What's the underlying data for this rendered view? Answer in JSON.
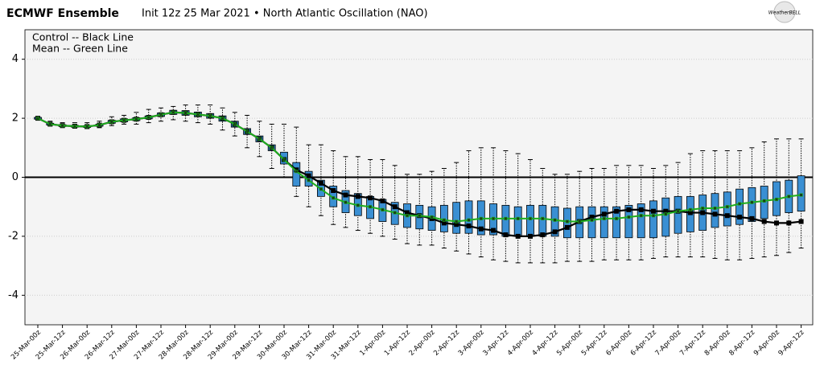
{
  "chart_data": {
    "type": "box",
    "title": "ECMWF Ensemble",
    "subtitle": "Init 12z 25 Mar 2021 • North Atlantic Oscillation (NAO)",
    "logo_text": "WeatherBELL",
    "categories": [
      "25-Mar-00z",
      null,
      "25-Mar-12z",
      null,
      "26-Mar-00z",
      null,
      "26-Mar-12z",
      null,
      "27-Mar-00z",
      null,
      "27-Mar-12z",
      null,
      "28-Mar-00z",
      null,
      "28-Mar-12z",
      null,
      "29-Mar-00z",
      null,
      "29-Mar-12z",
      null,
      "30-Mar-00z",
      null,
      "30-Mar-12z",
      null,
      "31-Mar-00z",
      null,
      "31-Mar-12z",
      null,
      "1-Apr-00z",
      null,
      "1-Apr-12z",
      null,
      "2-Apr-00z",
      null,
      "2-Apr-12z",
      null,
      "3-Apr-00z",
      null,
      "3-Apr-12z",
      null,
      "4-Apr-00z",
      null,
      "4-Apr-12z",
      null,
      "5-Apr-00z",
      null,
      "5-Apr-12z",
      null,
      "6-Apr-00z",
      null,
      "6-Apr-12z",
      null,
      "7-Apr-00z",
      null,
      "7-Apr-12z",
      null,
      "8-Apr-00z",
      null,
      "8-Apr-12z",
      null,
      "9-Apr-00z",
      null,
      "9-Apr-12z"
    ],
    "boxes": {
      "color": "#3a8fd3",
      "min": [
        1.95,
        1.75,
        1.7,
        1.68,
        1.65,
        1.68,
        1.75,
        1.8,
        1.8,
        1.85,
        1.9,
        1.95,
        1.9,
        1.85,
        1.8,
        1.6,
        1.4,
        1.0,
        0.7,
        0.3,
        0.0,
        -0.65,
        -1.0,
        -1.3,
        -1.6,
        -1.7,
        -1.8,
        -1.9,
        -2.0,
        -2.1,
        -2.25,
        -2.3,
        -2.3,
        -2.4,
        -2.5,
        -2.6,
        -2.7,
        -2.8,
        -2.85,
        -2.9,
        -2.9,
        -2.9,
        -2.9,
        -2.85,
        -2.85,
        -2.85,
        -2.8,
        -2.8,
        -2.8,
        -2.8,
        -2.75,
        -2.7,
        -2.7,
        -2.7,
        -2.7,
        -2.75,
        -2.8,
        -2.8,
        -2.75,
        -2.7,
        -2.65,
        -2.55,
        -2.4
      ],
      "q1": [
        1.97,
        1.77,
        1.72,
        1.7,
        1.69,
        1.73,
        1.83,
        1.88,
        1.92,
        1.98,
        2.06,
        2.13,
        2.1,
        2.05,
        2.0,
        1.9,
        1.7,
        1.45,
        1.2,
        0.9,
        0.45,
        -0.3,
        -0.3,
        -0.65,
        -1.0,
        -1.2,
        -1.3,
        -1.4,
        -1.5,
        -1.6,
        -1.7,
        -1.75,
        -1.8,
        -1.85,
        -1.9,
        -1.9,
        -1.95,
        -1.95,
        -2.0,
        -2.0,
        -2.0,
        -2.0,
        -2.0,
        -2.05,
        -2.05,
        -2.05,
        -2.05,
        -2.05,
        -2.05,
        -2.05,
        -2.05,
        -2.0,
        -1.9,
        -1.85,
        -1.8,
        -1.7,
        -1.65,
        -1.6,
        -1.5,
        -1.4,
        -1.3,
        -1.2,
        -1.15
      ],
      "q3": [
        2.03,
        1.83,
        1.78,
        1.76,
        1.75,
        1.8,
        1.93,
        1.98,
        2.02,
        2.08,
        2.18,
        2.27,
        2.26,
        2.21,
        2.16,
        2.08,
        1.9,
        1.65,
        1.4,
        1.1,
        0.85,
        0.5,
        0.2,
        -0.1,
        -0.3,
        -0.45,
        -0.55,
        -0.65,
        -0.75,
        -0.85,
        -0.9,
        -0.95,
        -1.0,
        -0.95,
        -0.85,
        -0.8,
        -0.8,
        -0.9,
        -0.95,
        -1.0,
        -0.95,
        -0.95,
        -1.0,
        -1.05,
        -1.0,
        -1.0,
        -1.0,
        -1.0,
        -0.95,
        -0.9,
        -0.8,
        -0.7,
        -0.65,
        -0.65,
        -0.6,
        -0.55,
        -0.5,
        -0.4,
        -0.35,
        -0.3,
        -0.15,
        -0.1,
        0.05
      ],
      "max": [
        2.05,
        1.9,
        1.85,
        1.85,
        1.85,
        1.9,
        2.05,
        2.1,
        2.2,
        2.3,
        2.35,
        2.4,
        2.45,
        2.45,
        2.45,
        2.35,
        2.2,
        2.1,
        1.9,
        1.8,
        1.8,
        1.7,
        1.1,
        1.1,
        0.9,
        0.7,
        0.7,
        0.6,
        0.6,
        0.4,
        0.1,
        0.1,
        0.2,
        0.3,
        0.5,
        0.9,
        1.0,
        1.0,
        0.9,
        0.8,
        0.6,
        0.3,
        0.1,
        0.1,
        0.2,
        0.3,
        0.3,
        0.4,
        0.4,
        0.4,
        0.3,
        0.4,
        0.5,
        0.8,
        0.9,
        0.9,
        0.9,
        0.9,
        1.0,
        1.2,
        1.3,
        1.3,
        1.3
      ]
    },
    "series": [
      {
        "name": "Control -- Black Line",
        "color": "#000000",
        "values": [
          2.0,
          1.8,
          1.75,
          1.73,
          1.72,
          1.77,
          1.88,
          1.93,
          1.97,
          2.03,
          2.12,
          2.2,
          2.18,
          2.13,
          2.08,
          2.0,
          1.8,
          1.55,
          1.3,
          1.0,
          0.6,
          0.25,
          0.05,
          -0.2,
          -0.45,
          -0.6,
          -0.65,
          -0.7,
          -0.8,
          -1.0,
          -1.2,
          -1.3,
          -1.4,
          -1.55,
          -1.6,
          -1.65,
          -1.75,
          -1.8,
          -1.95,
          -2.0,
          -2.0,
          -1.95,
          -1.85,
          -1.7,
          -1.5,
          -1.35,
          -1.25,
          -1.15,
          -1.1,
          -1.1,
          -1.15,
          -1.15,
          -1.15,
          -1.2,
          -1.2,
          -1.25,
          -1.3,
          -1.35,
          -1.4,
          -1.5,
          -1.55,
          -1.55,
          -1.5
        ]
      },
      {
        "name": "Mean -- Green Line",
        "color": "#1fae1f",
        "values": [
          2.0,
          1.8,
          1.75,
          1.73,
          1.72,
          1.77,
          1.88,
          1.93,
          1.97,
          2.03,
          2.12,
          2.2,
          2.18,
          2.13,
          2.08,
          2.0,
          1.8,
          1.55,
          1.3,
          1.0,
          0.6,
          0.2,
          -0.1,
          -0.4,
          -0.7,
          -0.85,
          -0.95,
          -1.0,
          -1.1,
          -1.2,
          -1.3,
          -1.3,
          -1.35,
          -1.45,
          -1.5,
          -1.45,
          -1.4,
          -1.4,
          -1.4,
          -1.4,
          -1.4,
          -1.4,
          -1.45,
          -1.5,
          -1.5,
          -1.45,
          -1.4,
          -1.4,
          -1.35,
          -1.3,
          -1.3,
          -1.25,
          -1.15,
          -1.1,
          -1.05,
          -1.05,
          -1.0,
          -0.9,
          -0.85,
          -0.8,
          -0.75,
          -0.65,
          -0.6
        ]
      }
    ],
    "ylim": [
      -5,
      5
    ],
    "yticks": [
      -4,
      -2,
      0,
      2,
      4
    ],
    "reference_line": 0,
    "grid": true
  }
}
